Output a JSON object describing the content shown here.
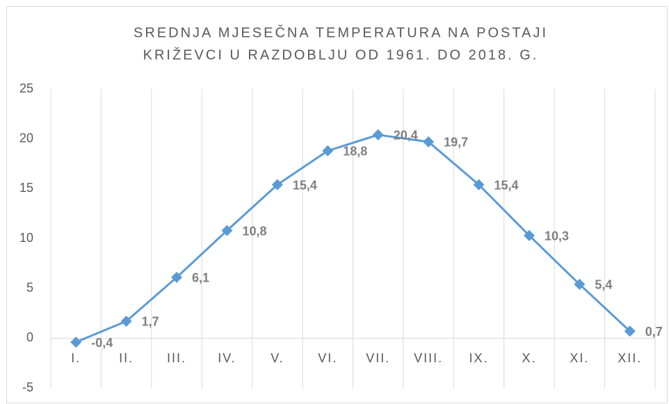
{
  "chart_data": {
    "type": "line",
    "title": [
      "SREDNJA MJESEČNA TEMPERATURA NA POSTAJI",
      "KRIŽEVCI U RAZDOBLJU OD 1961. DO 2018. G."
    ],
    "categories": [
      "I.",
      "II.",
      "III.",
      "IV.",
      "V.",
      "VI.",
      "VII.",
      "VIII.",
      "IX.",
      "X.",
      "XI.",
      "XII."
    ],
    "values": [
      -0.4,
      1.7,
      6.1,
      10.8,
      15.4,
      18.8,
      20.4,
      19.7,
      15.4,
      10.3,
      5.4,
      0.7
    ],
    "value_labels": [
      "-0,4",
      "1,7",
      "6,1",
      "10,8",
      "15,4",
      "18,8",
      "20,4",
      "19,7",
      "15,4",
      "10,3",
      "5,4",
      "0,7"
    ],
    "color": "#5b9bd5",
    "ylim": [
      -5,
      25
    ],
    "yticks": [
      -5,
      0,
      5,
      10,
      15,
      20,
      25
    ],
    "grid": true
  }
}
